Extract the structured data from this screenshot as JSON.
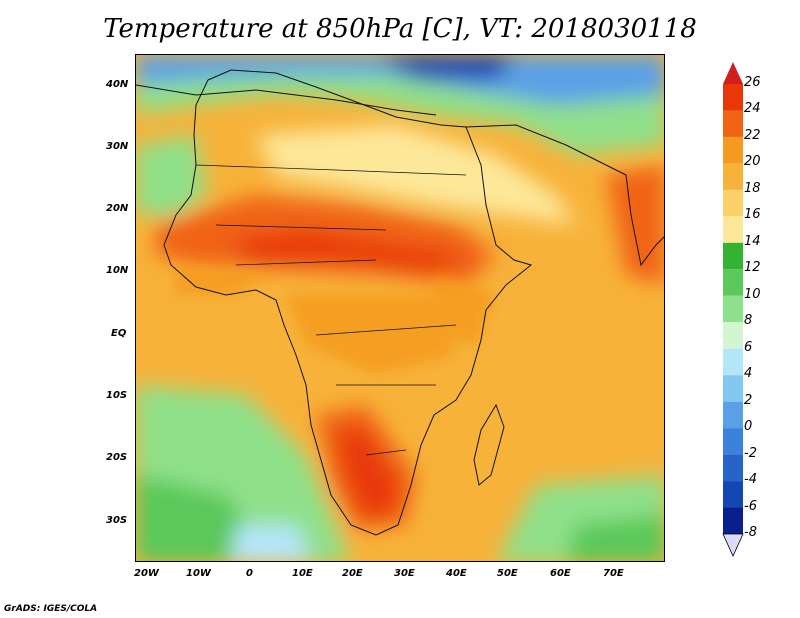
{
  "title": "Temperature at 850hPa [C], VT: 2018030118",
  "credit": "GrADS: IGES/COLA",
  "map": {
    "projection": "latlon",
    "lon_range": [
      -22,
      80
    ],
    "lat_range": [
      -37,
      45
    ],
    "lat_ticks": [
      "40N",
      "30N",
      "20N",
      "10N",
      "EQ",
      "10S",
      "20S",
      "30S"
    ],
    "lon_ticks": [
      "20W",
      "10W",
      "0",
      "10E",
      "20E",
      "30E",
      "40E",
      "50E",
      "60E",
      "70E"
    ]
  },
  "colorbar": {
    "labels": [
      "26",
      "24",
      "22",
      "20",
      "18",
      "16",
      "14",
      "12",
      "10",
      "8",
      "6",
      "4",
      "2",
      "0",
      "-2",
      "-4",
      "-6",
      "-8"
    ],
    "colors": [
      "#e8380a",
      "#f06414",
      "#f59a1e",
      "#f7b23a",
      "#fbd16a",
      "#fde89a",
      "#32b432",
      "#5ac85a",
      "#8fe08a",
      "#d2f5d2",
      "#b4e6fa",
      "#82c8f0",
      "#5aa0e6",
      "#3c82dc",
      "#2864c8",
      "#1446b4",
      "#0a1e8c"
    ],
    "top_arrow_color": "#d21e1e",
    "bottom_arrow_color": "#dcdcfa"
  }
}
